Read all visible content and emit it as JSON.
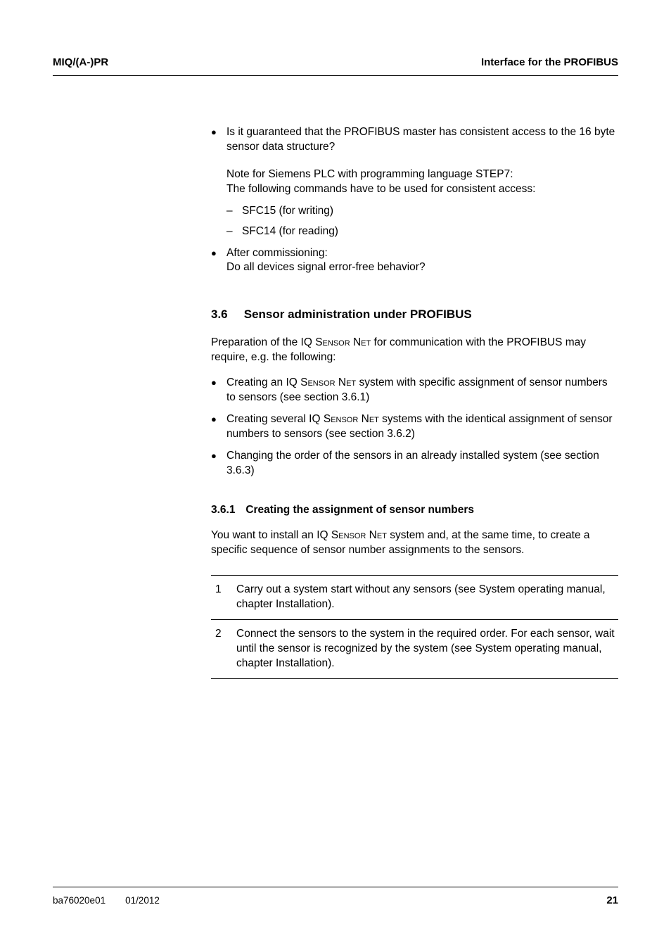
{
  "header": {
    "left": "MIQ/(A-)PR",
    "right": "Interface for the PROFIBUS"
  },
  "top_bullets": [
    {
      "text": "Is it guaranteed that the PROFIBUS master has consistent access to the 16 byte sensor data structure?",
      "para": "Note for Siemens PLC with programming language STEP7:\nThe following commands have to be used for consistent access:",
      "dashes": [
        "SFC15 (for writing)",
        "SFC14 (for reading)"
      ]
    },
    {
      "text": "After commissioning:\nDo all devices signal error-free behavior?"
    }
  ],
  "section": {
    "num": "3.6",
    "title": "Sensor administration under PROFIBUS",
    "intro_pre": "Preparation of the IQ S",
    "intro_sc1": "ensor",
    "intro_mid1": " N",
    "intro_sc2": "et",
    "intro_post": " for communication with the PROFIBUS may require, e.g. the following:",
    "bullets": [
      {
        "pre": "Creating an IQ S",
        "sc1": "ensor",
        "mid": " N",
        "sc2": "et",
        "post": " system with specific assignment of sensor numbers to sensors (see section 3.6.1)"
      },
      {
        "pre": "Creating several IQ S",
        "sc1": "ensor",
        "mid": " N",
        "sc2": "et",
        "post": " systems with the identical assignment of sensor numbers to sensors (see section 3.6.2)"
      },
      {
        "plain": "Changing the order of the sensors in an already installed system (see section 3.6.3)"
      }
    ]
  },
  "subsection": {
    "num": "3.6.1",
    "title": "Creating the assignment of sensor numbers",
    "intro_pre": "You want to install an IQ S",
    "intro_sc1": "ensor",
    "intro_mid": " N",
    "intro_sc2": "et",
    "intro_post": " system and, at the same time, to create a specific sequence of sensor number assignments to the sensors.",
    "steps": [
      {
        "num": "1",
        "text": "Carry out a system start without any sensors (see System operating manual, chapter Installation)."
      },
      {
        "num": "2",
        "text": "Connect the sensors to the system in the required order. For each sensor, wait until the sensor is recognized by the system (see System operating manual, chapter Installation)."
      }
    ]
  },
  "footer": {
    "doc": "ba76020e01",
    "date": "01/2012",
    "page": "21"
  }
}
